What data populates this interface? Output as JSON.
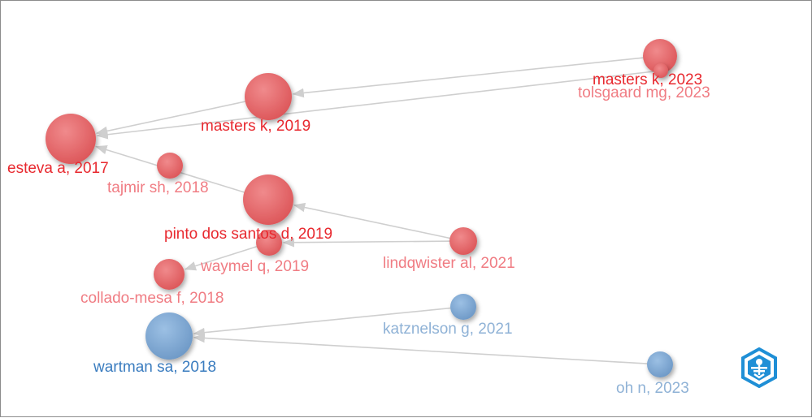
{
  "network": {
    "colors": {
      "red_node": "#e8696b",
      "red_node_dark": "#c94a4d",
      "red_label": "#e8292f",
      "pink_label": "#f07c83",
      "blue_node": "#7aa7d4",
      "blue_node_dark": "#5b86b5",
      "blue_label": "#3a7cbf",
      "light_blue_label": "#8fb2d6",
      "edge": "#cfcfcf",
      "logo": "#1f8fd6"
    },
    "nodes": [
      {
        "id": "masters-k-2023",
        "label": "masters k, 2023",
        "cluster": "red",
        "emphasis": "strong"
      },
      {
        "id": "tolsgaard-mg-2023",
        "label": "tolsgaard mg, 2023",
        "cluster": "red",
        "emphasis": "light"
      },
      {
        "id": "masters-k-2019",
        "label": "masters k, 2019",
        "cluster": "red",
        "emphasis": "strong"
      },
      {
        "id": "esteva-a-2017",
        "label": "esteva a, 2017",
        "cluster": "red",
        "emphasis": "strong"
      },
      {
        "id": "tajmir-sh-2018",
        "label": "tajmir sh, 2018",
        "cluster": "red",
        "emphasis": "light"
      },
      {
        "id": "pinto-dos-santos-d-2019",
        "label": "pinto dos santos d, 2019",
        "cluster": "red",
        "emphasis": "strong"
      },
      {
        "id": "waymel-q-2019",
        "label": "waymel q, 2019",
        "cluster": "red",
        "emphasis": "light"
      },
      {
        "id": "lindqwister-al-2021",
        "label": "lindqwister al, 2021",
        "cluster": "red",
        "emphasis": "light"
      },
      {
        "id": "collado-mesa-f-2018",
        "label": "collado-mesa f, 2018",
        "cluster": "red",
        "emphasis": "light"
      },
      {
        "id": "katznelson-g-2021",
        "label": "katznelson g, 2021",
        "cluster": "blue",
        "emphasis": "light"
      },
      {
        "id": "wartman-sa-2018",
        "label": "wartman sa, 2018",
        "cluster": "blue",
        "emphasis": "strong"
      },
      {
        "id": "oh-n-2023",
        "label": "oh n, 2023",
        "cluster": "blue",
        "emphasis": "light"
      }
    ],
    "edges": [
      {
        "from": "masters-k-2023",
        "to": "masters-k-2019"
      },
      {
        "from": "tolsgaard-mg-2023",
        "to": "esteva-a-2017"
      },
      {
        "from": "masters-k-2019",
        "to": "esteva-a-2017"
      },
      {
        "from": "pinto-dos-santos-d-2019",
        "to": "esteva-a-2017"
      },
      {
        "from": "lindqwister-al-2021",
        "to": "pinto-dos-santos-d-2019"
      },
      {
        "from": "lindqwister-al-2021",
        "to": "waymel-q-2019"
      },
      {
        "from": "waymel-q-2019",
        "to": "collado-mesa-f-2018"
      },
      {
        "from": "katznelson-g-2021",
        "to": "wartman-sa-2018"
      },
      {
        "from": "oh-n-2023",
        "to": "wartman-sa-2018"
      }
    ],
    "logo_icon": "citespace-style-hexagon-logo-icon"
  }
}
